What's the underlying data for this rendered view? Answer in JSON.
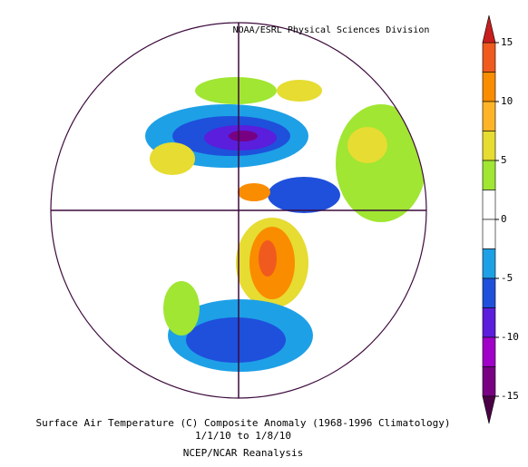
{
  "header": {
    "title": "NOAA/ESRL Physical Sciences Division"
  },
  "caption": {
    "line1": "Surface Air Temperature (C) Composite Anomaly (1968-1996 Climatology)",
    "line2": "1/1/10  to 1/8/10",
    "line3": "NCEP/NCAR Reanalysis"
  },
  "colorbar": {
    "range": [
      -15,
      15
    ],
    "ticks": [
      15,
      10,
      5,
      0,
      -5,
      -10,
      -15
    ],
    "colors": [
      "#f05a1e",
      "#fa8c00",
      "#ffb428",
      "#e6dc32",
      "#a0e632",
      "#ffffff",
      "#ffffff",
      "#1ea0e6",
      "#1e50dc",
      "#5a1edc",
      "#a000c8",
      "#780082"
    ],
    "over_color": "#c81e1e",
    "under_color": "#4b0046"
  }
}
